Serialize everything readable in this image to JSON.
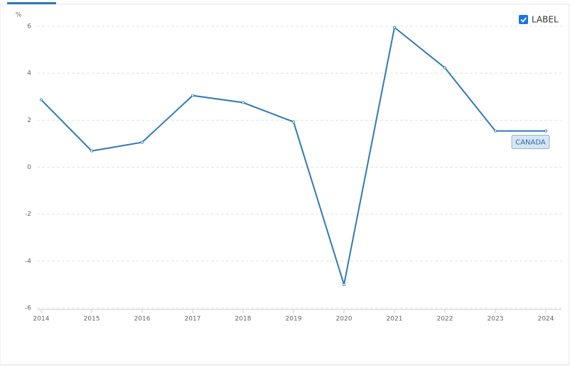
{
  "chart_data": {
    "type": "line",
    "y_label": "%",
    "toggle_label": "LABEL",
    "categories": [
      "2014",
      "2015",
      "2016",
      "2017",
      "2018",
      "2019",
      "2020",
      "2021",
      "2022",
      "2023",
      "2024"
    ],
    "series": [
      {
        "name": "CANADA",
        "color": "#2e7ab6",
        "values": [
          2.87,
          0.69,
          1.06,
          3.05,
          2.75,
          1.93,
          -5.0,
          5.95,
          4.23,
          1.54,
          1.54
        ]
      }
    ],
    "ylim": [
      -6,
      6
    ],
    "yticks": [
      -6,
      -4,
      -2,
      0,
      2,
      4,
      6
    ],
    "grid": true
  }
}
